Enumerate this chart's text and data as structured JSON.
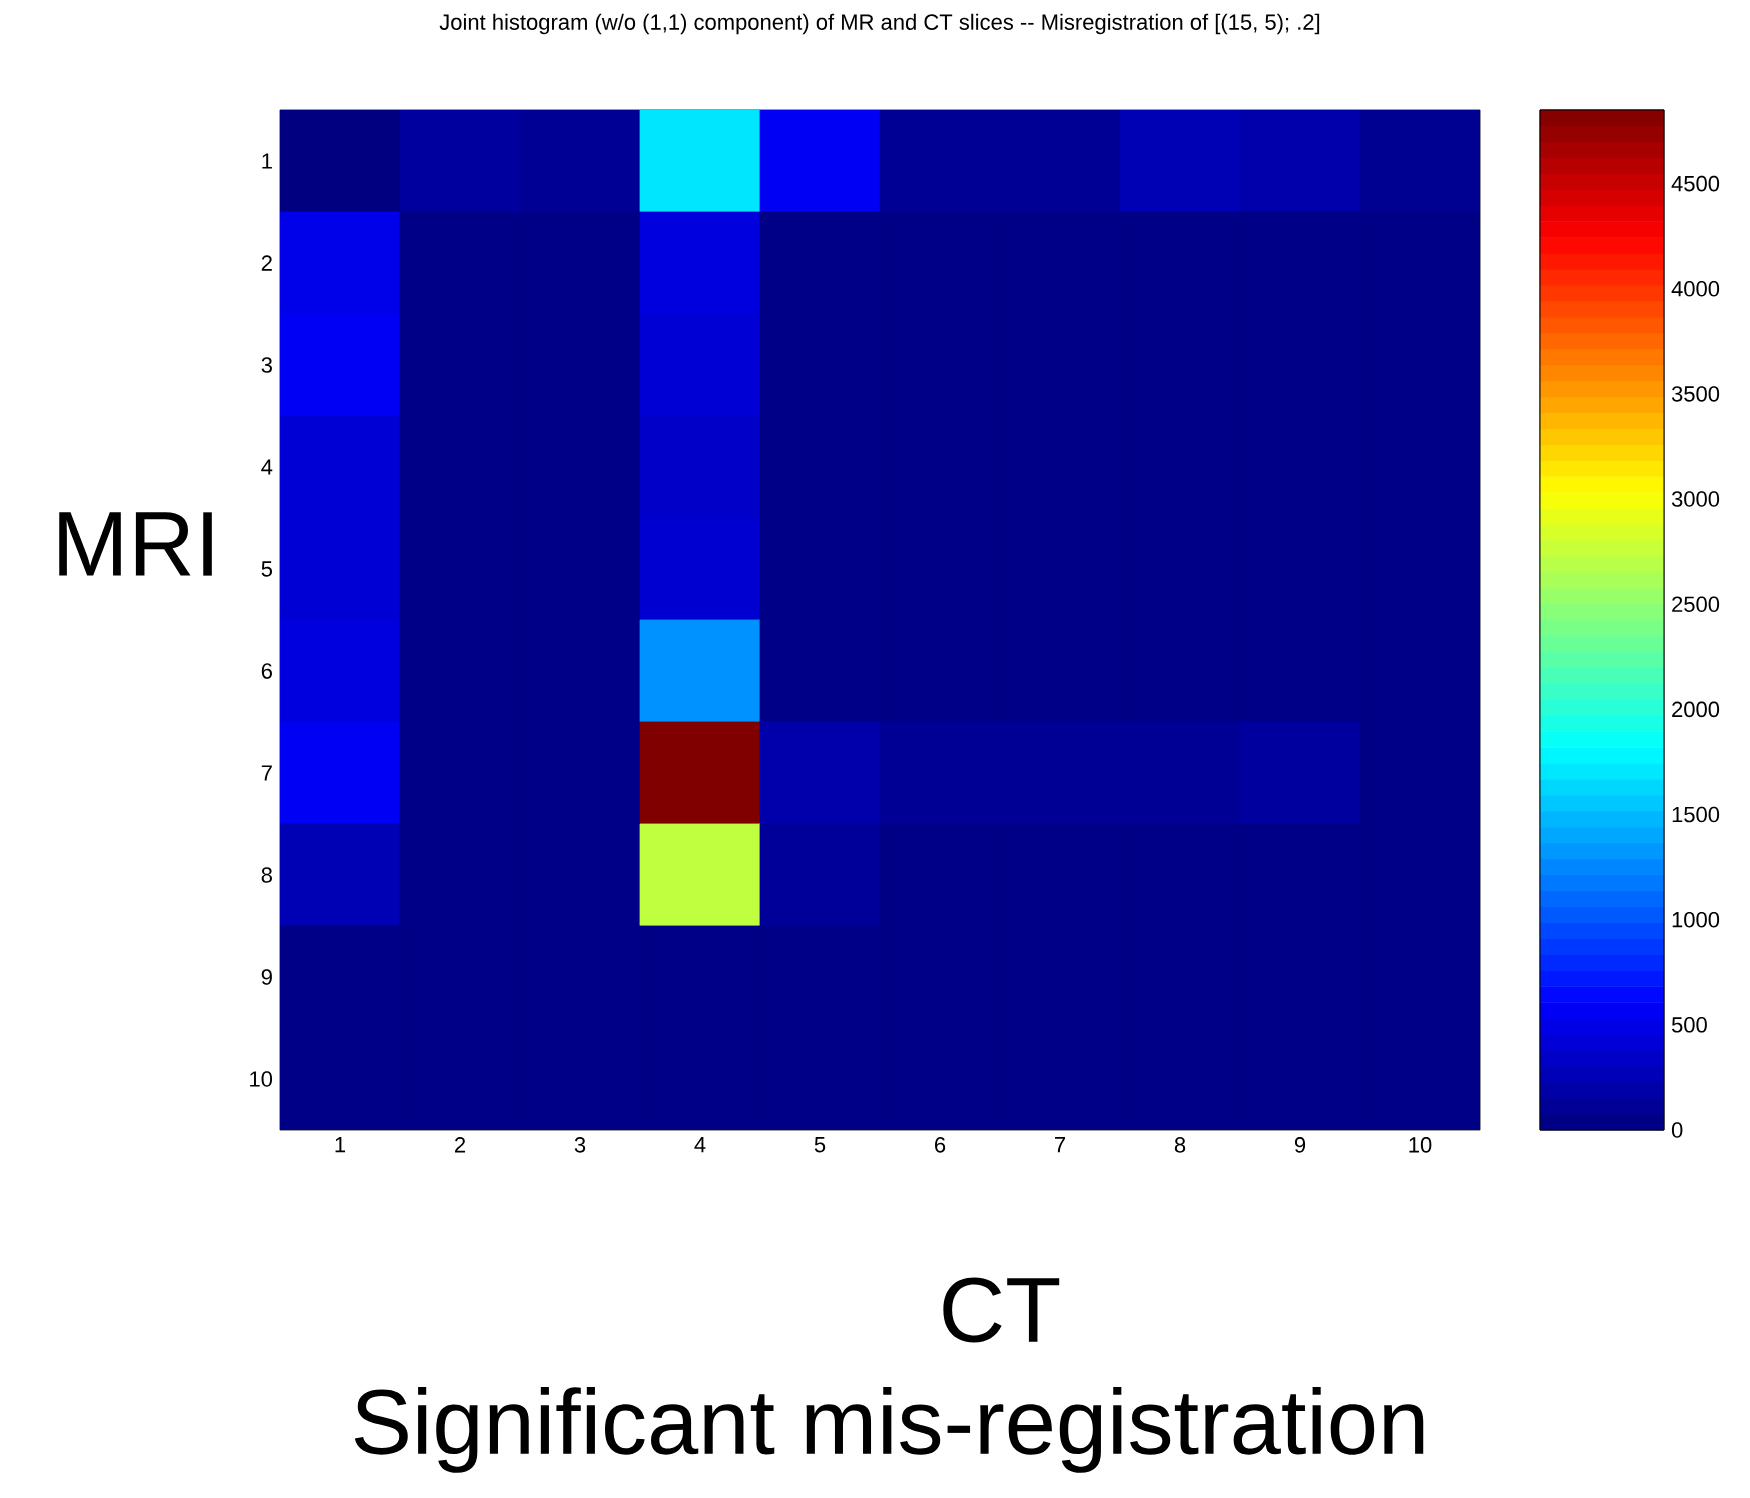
{
  "chart_data": {
    "type": "heatmap",
    "title": "Joint histogram (w/o (1,1) component) of MR and CT slices -- Misregistration of [(15, 5); .2]",
    "xlabel": "CT",
    "ylabel": "MRI",
    "annotations": [
      "Significant mis-registration"
    ],
    "categories": [
      "1",
      "2",
      "3",
      "4",
      "5",
      "6",
      "7",
      "8",
      "9",
      "10"
    ],
    "y_categories": [
      "1",
      "2",
      "3",
      "4",
      "5",
      "6",
      "7",
      "8",
      "9",
      "10"
    ],
    "cells": [
      [
        0,
        150,
        100,
        1700,
        550,
        100,
        100,
        250,
        200,
        80
      ],
      [
        500,
        30,
        30,
        450,
        30,
        30,
        30,
        30,
        30,
        30
      ],
      [
        550,
        30,
        30,
        400,
        30,
        30,
        30,
        30,
        30,
        30
      ],
      [
        400,
        30,
        30,
        350,
        30,
        30,
        30,
        30,
        30,
        30
      ],
      [
        400,
        30,
        30,
        380,
        30,
        30,
        30,
        30,
        30,
        30
      ],
      [
        450,
        30,
        30,
        1300,
        30,
        30,
        30,
        30,
        30,
        30
      ],
      [
        550,
        30,
        30,
        4850,
        200,
        100,
        100,
        100,
        150,
        30
      ],
      [
        250,
        30,
        30,
        2730,
        120,
        30,
        30,
        30,
        30,
        30
      ],
      [
        30,
        30,
        30,
        30,
        30,
        30,
        30,
        30,
        30,
        30
      ],
      [
        30,
        30,
        30,
        30,
        30,
        30,
        30,
        30,
        30,
        30
      ]
    ],
    "clim": [
      0,
      4850
    ],
    "cticks": [
      0,
      500,
      1000,
      1500,
      2000,
      2500,
      3000,
      3500,
      4000,
      4500
    ]
  }
}
